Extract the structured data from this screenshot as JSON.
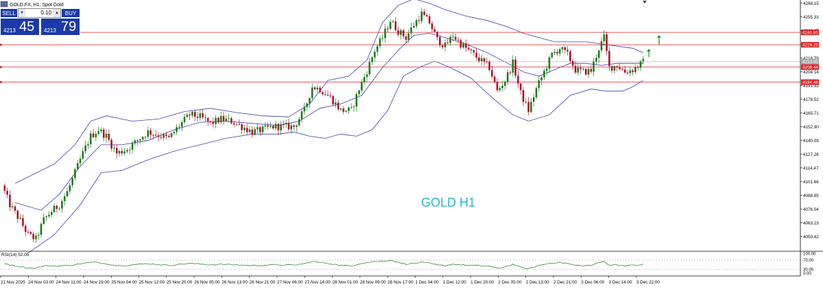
{
  "header": {
    "symbol_info": "GOLD.FX, H1:  Spot Gold"
  },
  "trade_panel": {
    "sell_label": "SELL",
    "buy_label": "BUY",
    "lot_value": "0.10",
    "sell_price_small": "4213",
    "sell_price_big": "45",
    "buy_price_small": "4213",
    "buy_price_big": "79"
  },
  "watermark": "GOLD H1",
  "rsi": {
    "label": "RSI(14) 52.05",
    "levels": [
      "100.00",
      "70.00",
      "30.00",
      "0.00"
    ]
  },
  "colors": {
    "bull_candle": "#1c7a1c",
    "bear_candle": "#b0122a",
    "bands": "#3b3fa8",
    "horizontal_lines": "#e02020",
    "rsi_line": "#2e8b2e",
    "watermark": "#23b5c9",
    "arrow": "#1aa01a"
  },
  "price_axis": [
    "4268.15",
    "4255.33",
    "4242.47",
    "4229.66",
    "4216.79",
    "4204.14",
    "4191.33",
    "4178.52",
    "4165.71",
    "4152.90",
    "4140.09",
    "4127.28",
    "4114.47",
    "4101.66",
    "4088.85",
    "4076.04",
    "4063.23",
    "4050.42"
  ],
  "price_labels": {
    "r1": "4240.85",
    "r2": "4229.25",
    "current": "4213.45",
    "s1": "4208.44",
    "s2": "4194.44"
  },
  "time_axis": [
    "21 Nov 2025",
    "24 Nov 03:00",
    "24 Nov 11:00",
    "24 Nov 19:00",
    "25 Nov 04:00",
    "25 Nov 12:00",
    "25 Nov 20:00",
    "26 Nov 05:00",
    "26 Nov 13:00",
    "26 Nov 21:00",
    "27 Nov 06:00",
    "27 Nov 14:00",
    "28 Nov 01:00",
    "28 Nov 09:00",
    "28 Nov 17:00",
    "1 Dec 04:00",
    "1 Dec 12:00",
    "1 Dec 20:00",
    "2 Dec 05:00",
    "2 Dec 13:00",
    "2 Dec 21:00",
    "3 Dec 06:00",
    "3 Dec 14:00",
    "3 Dec 22:00"
  ],
  "chart_data": {
    "type": "candlestick",
    "watermark": "GOLD H1",
    "horizontal_levels": [
      4240.85,
      4229.25,
      4208.44,
      4194.44
    ],
    "current_price": 4213.45,
    "ylim": [
      4038,
      4271
    ],
    "anchors": [
      {
        "i": 0,
        "p": 4098
      },
      {
        "i": 3,
        "p": 4080
      },
      {
        "i": 7,
        "p": 4065
      },
      {
        "i": 10,
        "p": 4052
      },
      {
        "i": 13,
        "p": 4048
      },
      {
        "i": 16,
        "p": 4066
      },
      {
        "i": 19,
        "p": 4074
      },
      {
        "i": 22,
        "p": 4080
      },
      {
        "i": 25,
        "p": 4092
      },
      {
        "i": 28,
        "p": 4110
      },
      {
        "i": 31,
        "p": 4128
      },
      {
        "i": 34,
        "p": 4144
      },
      {
        "i": 37,
        "p": 4150
      },
      {
        "i": 40,
        "p": 4144
      },
      {
        "i": 44,
        "p": 4128
      },
      {
        "i": 48,
        "p": 4132
      },
      {
        "i": 52,
        "p": 4140
      },
      {
        "i": 56,
        "p": 4148
      },
      {
        "i": 60,
        "p": 4145
      },
      {
        "i": 64,
        "p": 4142
      },
      {
        "i": 68,
        "p": 4154
      },
      {
        "i": 72,
        "p": 4164
      },
      {
        "i": 76,
        "p": 4162
      },
      {
        "i": 80,
        "p": 4156
      },
      {
        "i": 84,
        "p": 4160
      },
      {
        "i": 88,
        "p": 4158
      },
      {
        "i": 92,
        "p": 4153
      },
      {
        "i": 96,
        "p": 4148
      },
      {
        "i": 100,
        "p": 4150
      },
      {
        "i": 104,
        "p": 4153
      },
      {
        "i": 108,
        "p": 4153
      },
      {
        "i": 112,
        "p": 4153
      },
      {
        "i": 116,
        "p": 4168
      },
      {
        "i": 119,
        "p": 4190
      },
      {
        "i": 122,
        "p": 4188
      },
      {
        "i": 126,
        "p": 4180
      },
      {
        "i": 130,
        "p": 4168
      },
      {
        "i": 134,
        "p": 4168
      },
      {
        "i": 137,
        "p": 4188
      },
      {
        "i": 140,
        "p": 4205
      },
      {
        "i": 143,
        "p": 4224
      },
      {
        "i": 146,
        "p": 4236
      },
      {
        "i": 149,
        "p": 4252
      },
      {
        "i": 152,
        "p": 4242
      },
      {
        "i": 155,
        "p": 4236
      },
      {
        "i": 158,
        "p": 4248
      },
      {
        "i": 161,
        "p": 4258
      },
      {
        "i": 164,
        "p": 4250
      },
      {
        "i": 167,
        "p": 4234
      },
      {
        "i": 170,
        "p": 4228
      },
      {
        "i": 173,
        "p": 4238
      },
      {
        "i": 176,
        "p": 4230
      },
      {
        "i": 180,
        "p": 4222
      },
      {
        "i": 184,
        "p": 4214
      },
      {
        "i": 187,
        "p": 4208
      },
      {
        "i": 190,
        "p": 4186
      },
      {
        "i": 193,
        "p": 4196
      },
      {
        "i": 196,
        "p": 4212
      },
      {
        "i": 199,
        "p": 4184
      },
      {
        "i": 202,
        "p": 4168
      },
      {
        "i": 205,
        "p": 4188
      },
      {
        "i": 208,
        "p": 4204
      },
      {
        "i": 211,
        "p": 4220
      },
      {
        "i": 214,
        "p": 4226
      },
      {
        "i": 217,
        "p": 4220
      },
      {
        "i": 220,
        "p": 4206
      },
      {
        "i": 223,
        "p": 4204
      },
      {
        "i": 226,
        "p": 4205
      },
      {
        "i": 229,
        "p": 4226
      },
      {
        "i": 231,
        "p": 4236
      },
      {
        "i": 233,
        "p": 4208
      },
      {
        "i": 236,
        "p": 4210
      },
      {
        "i": 239,
        "p": 4204
      },
      {
        "i": 242,
        "p": 4206
      },
      {
        "i": 246,
        "p": 4213
      }
    ],
    "upper_band": [
      {
        "i": 5,
        "p": 4100
      },
      {
        "i": 20,
        "p": 4118
      },
      {
        "i": 28,
        "p": 4136
      },
      {
        "i": 34,
        "p": 4158
      },
      {
        "i": 40,
        "p": 4163
      },
      {
        "i": 50,
        "p": 4158
      },
      {
        "i": 60,
        "p": 4160
      },
      {
        "i": 70,
        "p": 4167
      },
      {
        "i": 80,
        "p": 4170
      },
      {
        "i": 90,
        "p": 4166
      },
      {
        "i": 100,
        "p": 4163
      },
      {
        "i": 110,
        "p": 4162
      },
      {
        "i": 118,
        "p": 4174
      },
      {
        "i": 125,
        "p": 4196
      },
      {
        "i": 133,
        "p": 4200
      },
      {
        "i": 140,
        "p": 4215
      },
      {
        "i": 146,
        "p": 4250
      },
      {
        "i": 152,
        "p": 4266
      },
      {
        "i": 158,
        "p": 4272
      },
      {
        "i": 164,
        "p": 4268
      },
      {
        "i": 170,
        "p": 4262
      },
      {
        "i": 178,
        "p": 4256
      },
      {
        "i": 186,
        "p": 4252
      },
      {
        "i": 194,
        "p": 4246
      },
      {
        "i": 200,
        "p": 4240
      },
      {
        "i": 206,
        "p": 4236
      },
      {
        "i": 212,
        "p": 4232
      },
      {
        "i": 218,
        "p": 4232
      },
      {
        "i": 224,
        "p": 4232
      },
      {
        "i": 230,
        "p": 4230
      },
      {
        "i": 236,
        "p": 4228
      },
      {
        "i": 242,
        "p": 4226
      },
      {
        "i": 246,
        "p": 4222
      }
    ],
    "middle_band": [
      {
        "i": 5,
        "p": 4082
      },
      {
        "i": 15,
        "p": 4075
      },
      {
        "i": 22,
        "p": 4090
      },
      {
        "i": 30,
        "p": 4116
      },
      {
        "i": 38,
        "p": 4136
      },
      {
        "i": 46,
        "p": 4136
      },
      {
        "i": 56,
        "p": 4140
      },
      {
        "i": 66,
        "p": 4150
      },
      {
        "i": 76,
        "p": 4157
      },
      {
        "i": 86,
        "p": 4158
      },
      {
        "i": 96,
        "p": 4156
      },
      {
        "i": 106,
        "p": 4154
      },
      {
        "i": 114,
        "p": 4158
      },
      {
        "i": 122,
        "p": 4170
      },
      {
        "i": 130,
        "p": 4174
      },
      {
        "i": 138,
        "p": 4182
      },
      {
        "i": 146,
        "p": 4208
      },
      {
        "i": 152,
        "p": 4224
      },
      {
        "i": 158,
        "p": 4238
      },
      {
        "i": 164,
        "p": 4240
      },
      {
        "i": 170,
        "p": 4236
      },
      {
        "i": 178,
        "p": 4230
      },
      {
        "i": 186,
        "p": 4222
      },
      {
        "i": 194,
        "p": 4212
      },
      {
        "i": 200,
        "p": 4204
      },
      {
        "i": 206,
        "p": 4200
      },
      {
        "i": 212,
        "p": 4206
      },
      {
        "i": 218,
        "p": 4212
      },
      {
        "i": 224,
        "p": 4212
      },
      {
        "i": 230,
        "p": 4210
      },
      {
        "i": 236,
        "p": 4212
      },
      {
        "i": 242,
        "p": 4212
      },
      {
        "i": 246,
        "p": 4212
      }
    ],
    "lower_band": [
      {
        "i": 10,
        "p": 4035
      },
      {
        "i": 20,
        "p": 4052
      },
      {
        "i": 30,
        "p": 4080
      },
      {
        "i": 38,
        "p": 4110
      },
      {
        "i": 46,
        "p": 4112
      },
      {
        "i": 56,
        "p": 4122
      },
      {
        "i": 66,
        "p": 4130
      },
      {
        "i": 76,
        "p": 4136
      },
      {
        "i": 86,
        "p": 4142
      },
      {
        "i": 96,
        "p": 4146
      },
      {
        "i": 106,
        "p": 4146
      },
      {
        "i": 112,
        "p": 4148
      },
      {
        "i": 118,
        "p": 4144
      },
      {
        "i": 124,
        "p": 4142
      },
      {
        "i": 130,
        "p": 4146
      },
      {
        "i": 136,
        "p": 4144
      },
      {
        "i": 142,
        "p": 4150
      },
      {
        "i": 148,
        "p": 4168
      },
      {
        "i": 154,
        "p": 4200
      },
      {
        "i": 160,
        "p": 4208
      },
      {
        "i": 166,
        "p": 4214
      },
      {
        "i": 172,
        "p": 4208
      },
      {
        "i": 180,
        "p": 4198
      },
      {
        "i": 188,
        "p": 4180
      },
      {
        "i": 196,
        "p": 4164
      },
      {
        "i": 202,
        "p": 4158
      },
      {
        "i": 210,
        "p": 4164
      },
      {
        "i": 218,
        "p": 4182
      },
      {
        "i": 226,
        "p": 4188
      },
      {
        "i": 232,
        "p": 4186
      },
      {
        "i": 238,
        "p": 4186
      },
      {
        "i": 242,
        "p": 4190
      },
      {
        "i": 246,
        "p": 4196
      }
    ]
  }
}
